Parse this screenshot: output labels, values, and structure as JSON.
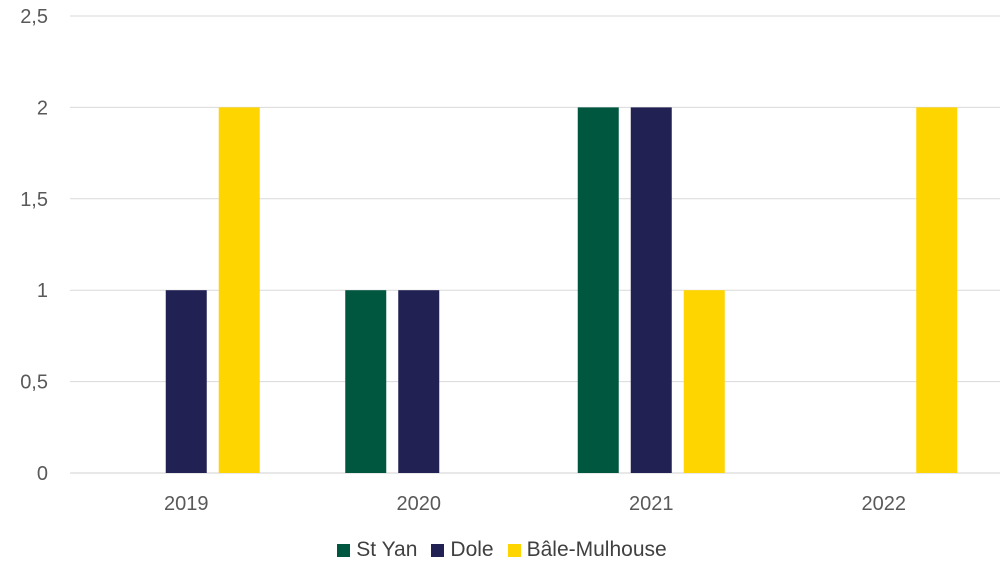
{
  "chart_data": {
    "type": "bar",
    "categories": [
      "2019",
      "2020",
      "2021",
      "2022"
    ],
    "series": [
      {
        "name": "St Yan",
        "color": "#00573F",
        "values": [
          0,
          1,
          2,
          0
        ]
      },
      {
        "name": "Dole",
        "color": "#212154",
        "values": [
          1,
          1,
          2,
          0
        ]
      },
      {
        "name": "Bâle-Mulhouse",
        "color": "#FFD500",
        "values": [
          2,
          0,
          1,
          2
        ]
      }
    ],
    "ylim": [
      0,
      2.5
    ],
    "yticks": [
      "0",
      "0,5",
      "1",
      "1,5",
      "2",
      "2,5"
    ],
    "grid": true,
    "legend_position": "bottom"
  }
}
